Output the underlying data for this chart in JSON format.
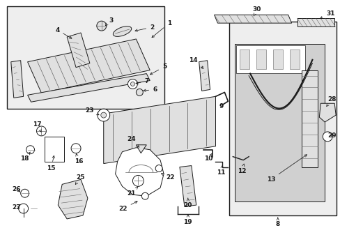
{
  "bg_color": "#ffffff",
  "fig_width": 4.89,
  "fig_height": 3.6,
  "dpi": 100,
  "dark": "#1a1a1a",
  "gray": "#666666",
  "fill_gray": "#e0e0e0",
  "fill_light": "#eeeeee",
  "fill_mid": "#d0d0d0"
}
